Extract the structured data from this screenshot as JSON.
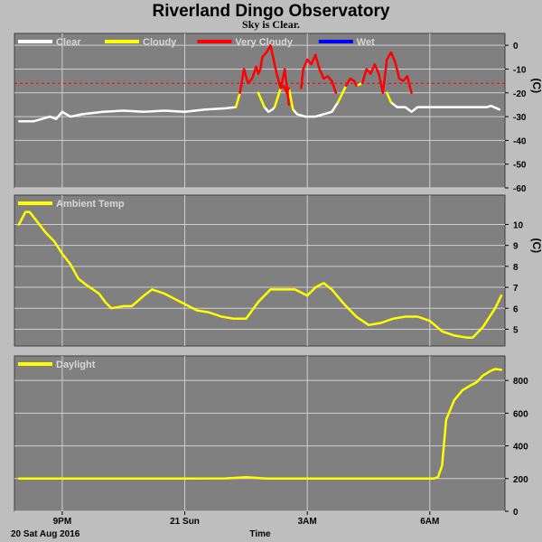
{
  "title": "Riverland Dingo Observatory",
  "subtitle": "Sky is Clear.",
  "x_axis": {
    "label": "Time",
    "date_label": "20 Sat Aug 2016",
    "ticks": [
      {
        "label": "9PM",
        "t": 0.0
      },
      {
        "label": "21 Sun",
        "t": 3.0
      },
      {
        "label": "3AM",
        "t": 6.0
      },
      {
        "label": "6AM",
        "t": 9.0
      }
    ],
    "range_hours_from_9pm": [
      -1.17,
      10.84
    ]
  },
  "colors": {
    "background": "#bebebe",
    "plot_bg": "#808080",
    "grid": "#d0d0d0",
    "clear": "#ffffff",
    "cloudy": "#ffff00",
    "very_cloudy": "#ff0000",
    "wet": "#0000ff",
    "threshold": "#ff0000"
  },
  "chart_data": [
    {
      "type": "line",
      "unit": "(C)",
      "ylim": [
        -60,
        5
      ],
      "yticks": [
        0,
        -10,
        -20,
        -30,
        -40,
        -50,
        -60
      ],
      "threshold": -16,
      "legend": [
        {
          "name": "Clear",
          "color": "#ffffff"
        },
        {
          "name": "Cloudy",
          "color": "#ffff00"
        },
        {
          "name": "Very Cloudy",
          "color": "#ff0000"
        },
        {
          "name": "Wet",
          "color": "#0000ff"
        }
      ],
      "series": [
        {
          "name": "Clear",
          "color": "#ffffff",
          "segments": [
            [
              [
                -1.05,
                -32
              ],
              [
                -0.7,
                -32
              ],
              [
                -0.3,
                -30
              ],
              [
                -0.15,
                -31
              ],
              [
                0,
                -28
              ],
              [
                0.2,
                -30
              ],
              [
                0.5,
                -29
              ],
              [
                1,
                -28
              ],
              [
                1.5,
                -27.5
              ],
              [
                2,
                -28
              ],
              [
                2.5,
                -27.5
              ],
              [
                3,
                -28
              ],
              [
                3.5,
                -27
              ],
              [
                4,
                -26.5
              ],
              [
                4.25,
                -26
              ]
            ],
            [
              [
                4.95,
                -26
              ],
              [
                5.05,
                -28
              ],
              [
                5.15,
                -27
              ],
              [
                5.2,
                -26
              ]
            ],
            [
              [
                5.65,
                -27
              ],
              [
                5.75,
                -29
              ],
              [
                5.95,
                -30
              ],
              [
                6.2,
                -30
              ],
              [
                6.4,
                -29
              ],
              [
                6.6,
                -28
              ],
              [
                6.75,
                -24
              ]
            ],
            [
              [
                8.05,
                -24
              ],
              [
                8.2,
                -26
              ],
              [
                8.4,
                -26
              ],
              [
                8.55,
                -28
              ],
              [
                8.7,
                -26
              ],
              [
                9,
                -26
              ],
              [
                9.5,
                -26
              ],
              [
                10,
                -26
              ],
              [
                10.4,
                -26
              ],
              [
                10.5,
                -25.5
              ],
              [
                10.7,
                -27
              ]
            ]
          ]
        },
        {
          "name": "Cloudy",
          "color": "#ffff00",
          "segments": [
            [
              [
                4.25,
                -26
              ],
              [
                4.35,
                -20
              ]
            ],
            [
              [
                4.8,
                -20
              ],
              [
                4.95,
                -26
              ]
            ],
            [
              [
                5.2,
                -26
              ],
              [
                5.35,
                -18
              ]
            ],
            [
              [
                5.55,
                -18
              ],
              [
                5.65,
                -27
              ]
            ],
            [
              [
                6.75,
                -24
              ],
              [
                6.95,
                -17
              ]
            ],
            [
              [
                7.2,
                -17
              ],
              [
                7.35,
                -16
              ]
            ],
            [
              [
                7.95,
                -20
              ],
              [
                8.05,
                -24
              ]
            ]
          ]
        },
        {
          "name": "Very Cloudy",
          "color": "#ff0000",
          "segments": [
            [
              [
                4.35,
                -20
              ],
              [
                4.45,
                -10
              ],
              [
                4.55,
                -16
              ],
              [
                4.65,
                -14
              ],
              [
                4.75,
                -9
              ],
              [
                4.8,
                -12
              ],
              [
                4.85,
                -10
              ],
              [
                4.9,
                -5
              ],
              [
                5,
                -3
              ],
              [
                5.1,
                0
              ],
              [
                5.2,
                -8
              ],
              [
                5.25,
                -12
              ],
              [
                5.3,
                -15
              ],
              [
                5.35,
                -18
              ],
              [
                5.42,
                -17
              ],
              [
                5.5,
                -20
              ],
              [
                5.55,
                -18
              ]
            ],
            [
              [
                5.35,
                -18
              ],
              [
                5.45,
                -10
              ],
              [
                5.55,
                -25
              ]
            ],
            [
              [
                5.85,
                -18
              ],
              [
                5.9,
                -10
              ],
              [
                6,
                -6
              ],
              [
                6.1,
                -8
              ],
              [
                6.2,
                -4
              ],
              [
                6.3,
                -10
              ],
              [
                6.4,
                -14
              ],
              [
                6.5,
                -13
              ],
              [
                6.6,
                -15
              ],
              [
                6.7,
                -20
              ]
            ],
            [
              [
                6.95,
                -17
              ],
              [
                7.05,
                -14
              ],
              [
                7.15,
                -15
              ],
              [
                7.2,
                -17
              ]
            ],
            [
              [
                7.35,
                -16
              ],
              [
                7.45,
                -10
              ],
              [
                7.55,
                -12
              ],
              [
                7.65,
                -8
              ],
              [
                7.75,
                -12
              ],
              [
                7.85,
                -20
              ],
              [
                7.95,
                -6
              ],
              [
                8.05,
                -3
              ],
              [
                8.15,
                -7
              ],
              [
                8.25,
                -14
              ],
              [
                8.35,
                -15
              ],
              [
                8.45,
                -13
              ],
              [
                8.55,
                -20
              ]
            ]
          ]
        }
      ]
    },
    {
      "type": "line",
      "legend": [
        {
          "name": "Ambient Temp",
          "color": "#ffff00"
        }
      ],
      "unit": "(C)",
      "ylim": [
        4.2,
        11.4
      ],
      "yticks": [
        10,
        9,
        8,
        7,
        6,
        5
      ],
      "series": [
        {
          "name": "Ambient Temp",
          "color": "#ffff00",
          "points": [
            [
              -1.06,
              10.0
            ],
            [
              -0.9,
              10.6
            ],
            [
              -0.8,
              10.6
            ],
            [
              -0.6,
              10.1
            ],
            [
              -0.4,
              9.6
            ],
            [
              -0.2,
              9.2
            ],
            [
              0,
              8.6
            ],
            [
              0.2,
              8.1
            ],
            [
              0.4,
              7.4
            ],
            [
              0.6,
              7.1
            ],
            [
              0.9,
              6.7
            ],
            [
              1.05,
              6.3
            ],
            [
              1.2,
              6.0
            ],
            [
              1.5,
              6.1
            ],
            [
              1.7,
              6.1
            ],
            [
              2.0,
              6.6
            ],
            [
              2.2,
              6.9
            ],
            [
              2.5,
              6.7
            ],
            [
              2.8,
              6.4
            ],
            [
              3.0,
              6.2
            ],
            [
              3.3,
              5.9
            ],
            [
              3.6,
              5.8
            ],
            [
              3.9,
              5.6
            ],
            [
              4.2,
              5.5
            ],
            [
              4.5,
              5.5
            ],
            [
              4.8,
              6.3
            ],
            [
              5.1,
              6.9
            ],
            [
              5.4,
              6.9
            ],
            [
              5.7,
              6.9
            ],
            [
              6.0,
              6.6
            ],
            [
              6.2,
              7.0
            ],
            [
              6.4,
              7.2
            ],
            [
              6.6,
              6.9
            ],
            [
              6.9,
              6.2
            ],
            [
              7.2,
              5.6
            ],
            [
              7.5,
              5.2
            ],
            [
              7.8,
              5.3
            ],
            [
              8.1,
              5.5
            ],
            [
              8.4,
              5.6
            ],
            [
              8.7,
              5.6
            ],
            [
              9.0,
              5.4
            ],
            [
              9.3,
              4.9
            ],
            [
              9.6,
              4.7
            ],
            [
              9.9,
              4.6
            ],
            [
              10.05,
              4.6
            ],
            [
              10.3,
              5.1
            ],
            [
              10.6,
              6.0
            ],
            [
              10.75,
              6.6
            ]
          ]
        }
      ]
    },
    {
      "type": "line",
      "legend": [
        {
          "name": "Daylight",
          "color": "#ffff00"
        }
      ],
      "ylim": [
        0,
        950
      ],
      "yticks": [
        800,
        600,
        400,
        200,
        0
      ],
      "series": [
        {
          "name": "Daylight",
          "color": "#ffff00",
          "points": [
            [
              -1.06,
              200
            ],
            [
              0,
              200
            ],
            [
              1,
              200
            ],
            [
              2,
              200
            ],
            [
              3,
              200
            ],
            [
              4,
              201
            ],
            [
              4.5,
              208
            ],
            [
              5,
              200
            ],
            [
              6,
              200
            ],
            [
              7,
              200
            ],
            [
              8,
              200
            ],
            [
              9,
              200
            ],
            [
              9.1,
              200
            ],
            [
              9.2,
              210
            ],
            [
              9.3,
              280
            ],
            [
              9.4,
              560
            ],
            [
              9.6,
              680
            ],
            [
              9.8,
              740
            ],
            [
              10.0,
              770
            ],
            [
              10.15,
              790
            ],
            [
              10.3,
              830
            ],
            [
              10.5,
              860
            ],
            [
              10.6,
              870
            ],
            [
              10.75,
              865
            ]
          ]
        }
      ]
    }
  ]
}
